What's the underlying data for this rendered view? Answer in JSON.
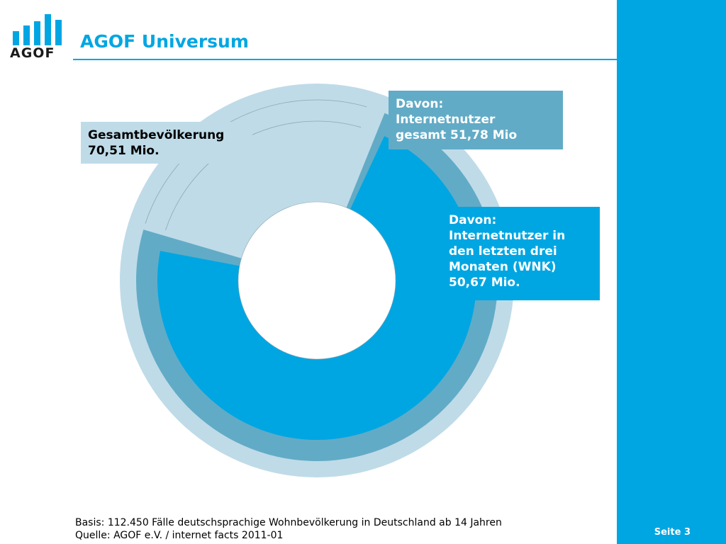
{
  "title": "AGOF Universum",
  "logo": {
    "text": "AGOF"
  },
  "page_number": "Seite 3",
  "footer": {
    "basis": "Basis: 112.450 Fälle deutschsprachige Wohnbevölkerung in Deutschland ab 14 Jahren",
    "source": "Quelle: AGOF e.V. / internet facts 2011-01"
  },
  "labels": {
    "total": {
      "line1": "Gesamtbevölkerung",
      "line2": "70,51 Mio."
    },
    "internet_users": {
      "line1": "Davon:",
      "line2": "Internetnutzer",
      "line3": "gesamt 51,78 Mio"
    },
    "wnk": {
      "line1": "Davon:",
      "line2": "Internetnutzer in",
      "line3": "den letzten drei",
      "line4": "Monaten (WNK)",
      "line5": "50,67 Mio."
    }
  },
  "colors": {
    "accent": "#00a6e2",
    "total": "#bfdbe8",
    "internet_users": "#62abc6",
    "wnk": "#00a6e2"
  },
  "chart_data": {
    "type": "pie",
    "categories": [
      "Gesamtbevölkerung",
      "Internetnutzer gesamt",
      "Internetnutzer WNK"
    ],
    "values": [
      70.51,
      51.78,
      50.67
    ],
    "total": 70.51
  }
}
